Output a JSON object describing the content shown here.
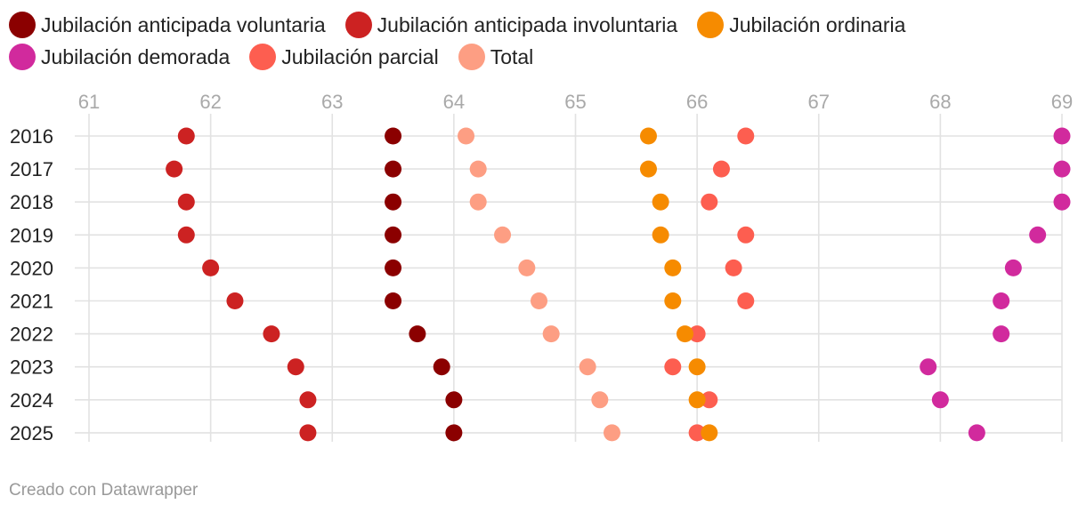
{
  "chart_data": {
    "type": "scatter",
    "title": "",
    "xlabel": "",
    "ylabel": "",
    "xlim": [
      61,
      69
    ],
    "x_ticks": [
      "61",
      "62",
      "63",
      "64",
      "65",
      "66",
      "67",
      "68",
      "69"
    ],
    "categories": [
      "2016",
      "2017",
      "2018",
      "2019",
      "2020",
      "2021",
      "2022",
      "2023",
      "2024",
      "2025"
    ],
    "series": [
      {
        "name": "Jubilación anticipada voluntaria",
        "color": "#8b0000",
        "values": [
          63.5,
          63.5,
          63.5,
          63.5,
          63.5,
          63.5,
          63.7,
          63.9,
          64.0,
          64.0
        ]
      },
      {
        "name": "Jubilación anticipada involuntaria",
        "color": "#cc2222",
        "values": [
          61.8,
          61.7,
          61.8,
          61.8,
          62.0,
          62.2,
          62.5,
          62.7,
          62.8,
          62.8
        ]
      },
      {
        "name": "Jubilación ordinaria",
        "color": "#f68b00",
        "values": [
          65.6,
          65.6,
          65.7,
          65.7,
          65.8,
          65.8,
          65.9,
          66.0,
          66.0,
          66.1
        ]
      },
      {
        "name": "Jubilación demorada",
        "color": "#d12a9d",
        "values": [
          69.0,
          69.0,
          69.0,
          68.8,
          68.6,
          68.5,
          68.5,
          67.9,
          68.0,
          68.3
        ]
      },
      {
        "name": "Jubilación parcial",
        "color": "#fd5e50",
        "values": [
          66.4,
          66.2,
          66.1,
          66.4,
          66.3,
          66.4,
          66.0,
          65.8,
          66.1,
          66.0
        ]
      },
      {
        "name": "Total",
        "color": "#fd9e83",
        "values": [
          64.1,
          64.2,
          64.2,
          64.4,
          64.6,
          64.7,
          64.8,
          65.1,
          65.2,
          65.3
        ]
      }
    ],
    "legend_position": "top-left",
    "grid": true
  },
  "legend_rows": [
    [
      0,
      1,
      2
    ],
    [
      3,
      4,
      5
    ]
  ],
  "footer": "Creado con Datawrapper"
}
